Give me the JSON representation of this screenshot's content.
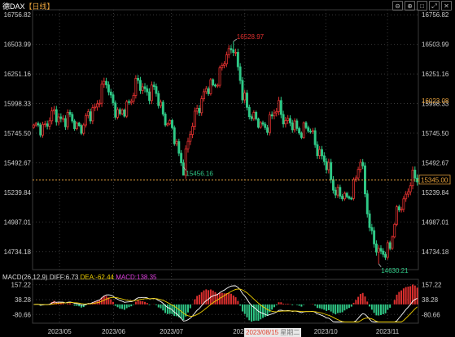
{
  "header": {
    "symbol": "德DAX",
    "period": "【日线】"
  },
  "toolbar": {
    "buttons": [
      "⊖",
      "⊕",
      "□",
      "⤢",
      "✕"
    ]
  },
  "colors": {
    "up": "#e0302f",
    "down": "#2fc987",
    "grid": "#3a3a3a",
    "axis_text": "#cccccc",
    "ref_line": "#e8a23c",
    "dif": "#ffffff",
    "dea": "#f0d000"
  },
  "chart_data": {
    "type": "candlestick",
    "title": "德DAX",
    "price_axis": {
      "ticks": [
        16756.82,
        16503.99,
        16251.16,
        15998.33,
        15745.5,
        15492.67,
        15239.84,
        14987.01,
        14734.18
      ],
      "ylim": [
        14580,
        16800
      ]
    },
    "date_axis": {
      "labels": [
        "2023/05",
        "2023/06",
        "2023/07",
        "2023/08",
        "2023/10",
        "2023/11"
      ]
    },
    "markers": {
      "last_price": "16023.08",
      "reference_price": "15345.00"
    },
    "annotations": [
      {
        "text": "16528.97",
        "type": "high"
      },
      {
        "text": "15456.16",
        "type": "low"
      },
      {
        "text": "14630.21",
        "type": "low"
      }
    ],
    "anchors": [
      {
        "x": 0,
        "y": 15760
      },
      {
        "x": 10,
        "y": 15900
      },
      {
        "x": 22,
        "y": 15800
      },
      {
        "x": 32,
        "y": 16170
      },
      {
        "x": 38,
        "y": 15860
      },
      {
        "x": 45,
        "y": 16150
      },
      {
        "x": 53,
        "y": 16100
      },
      {
        "x": 60,
        "y": 15800
      },
      {
        "x": 66,
        "y": 15470
      },
      {
        "x": 72,
        "y": 15980
      },
      {
        "x": 82,
        "y": 16250
      },
      {
        "x": 88,
        "y": 16530
      },
      {
        "x": 92,
        "y": 16050
      },
      {
        "x": 100,
        "y": 15780
      },
      {
        "x": 108,
        "y": 15950
      },
      {
        "x": 115,
        "y": 15770
      },
      {
        "x": 120,
        "y": 15800
      },
      {
        "x": 126,
        "y": 15600
      },
      {
        "x": 132,
        "y": 15300
      },
      {
        "x": 138,
        "y": 15150
      },
      {
        "x": 144,
        "y": 15500
      },
      {
        "x": 148,
        "y": 14970
      },
      {
        "x": 152,
        "y": 14680
      },
      {
        "x": 157,
        "y": 14800
      },
      {
        "x": 161,
        "y": 15100
      },
      {
        "x": 166,
        "y": 15320
      },
      {
        "x": 168,
        "y": 15345
      }
    ],
    "highlights": [
      {
        "at": 88,
        "kind": "high",
        "value": 16528.97
      },
      {
        "at": 66,
        "kind": "low",
        "value": 15456.16
      },
      {
        "at": 152,
        "kind": "low",
        "value": 14630.21
      }
    ],
    "macd": {
      "params": "MACD(26,12,9)",
      "dif_label": "DIFF:6.73",
      "dea_label": "DEA:-62.44",
      "macd_label": "MACD:138.35",
      "ticks": [
        157.22,
        38.28,
        -80.66
      ],
      "ylim": [
        -150,
        200
      ]
    },
    "cursor": {
      "date": "2023/08/15",
      "weekday": "星期二"
    }
  }
}
